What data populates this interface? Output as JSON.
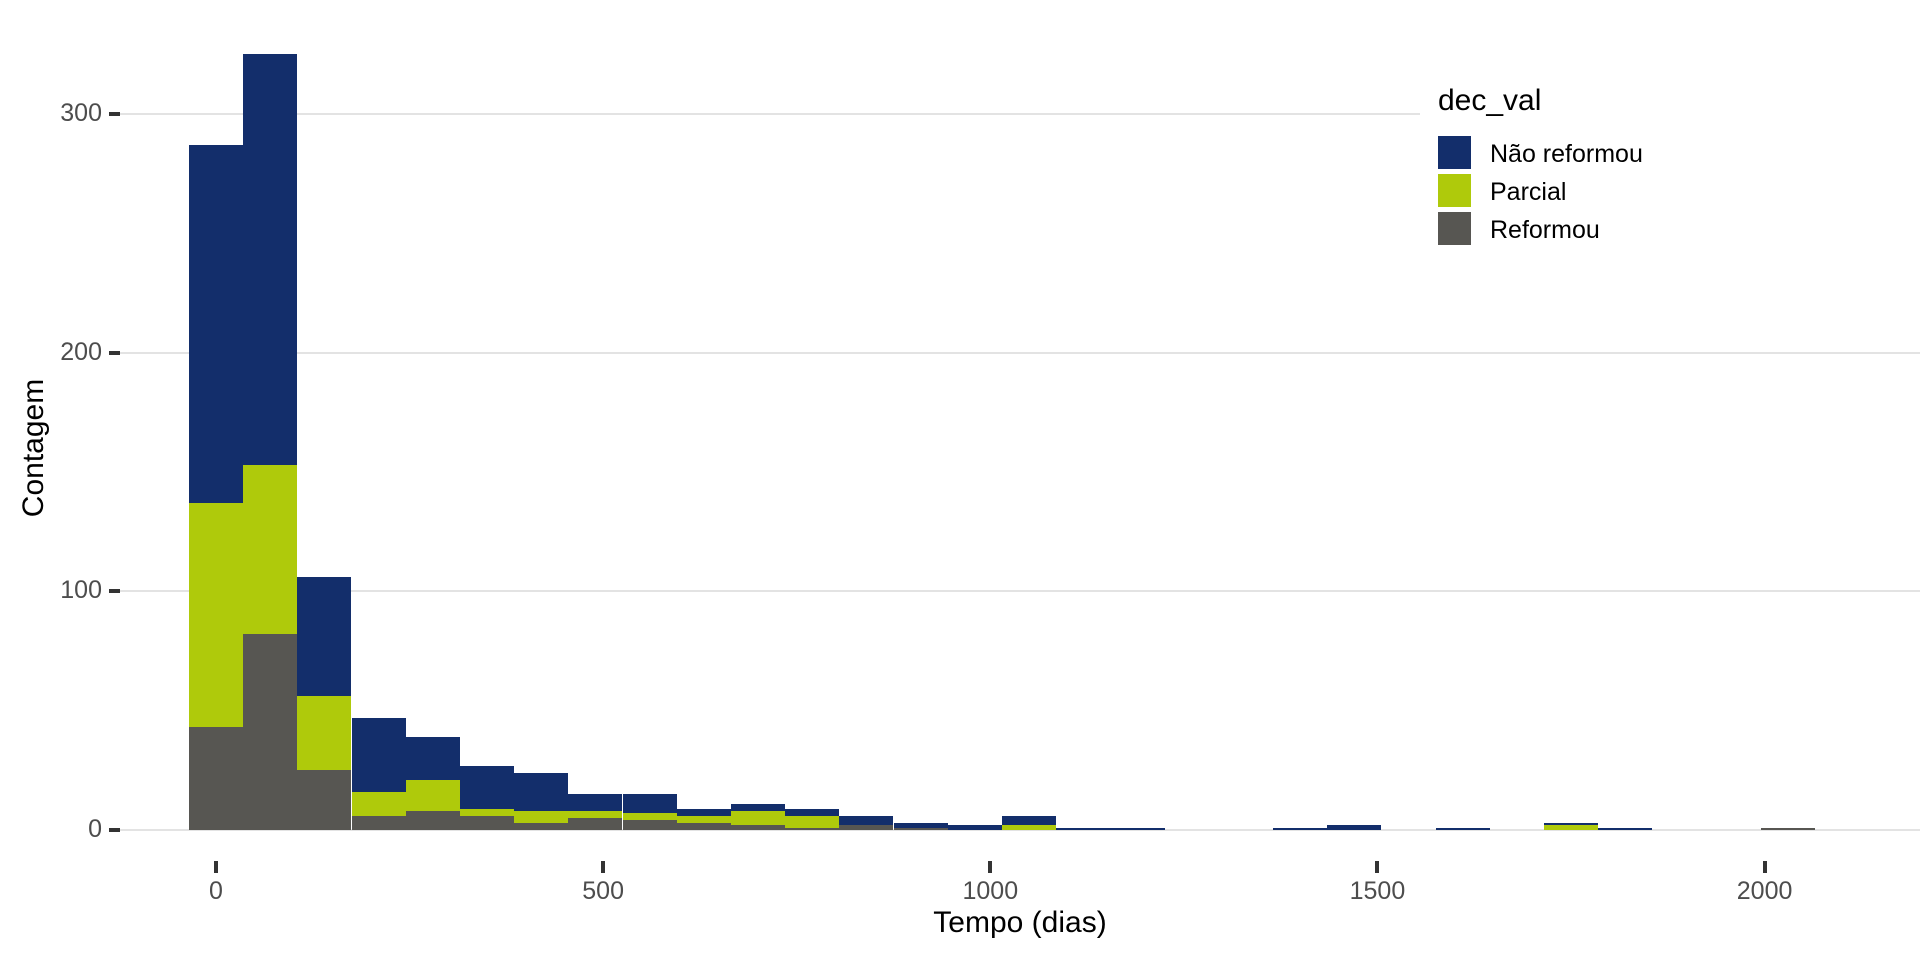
{
  "chart_data": {
    "type": "bar",
    "subtype": "stacked-histogram",
    "title": "",
    "xlabel": "Tempo (dias)",
    "ylabel": "Contagem",
    "legend_title": "dec_val",
    "legend_position": "top-right-inside",
    "grid": "horizontal-only",
    "background": "#ffffff",
    "gridline_color": "#e3e3e3",
    "tick_mark_color": "#333333",
    "tick_label_color": "#4d4d4d",
    "x_ticks": [
      0,
      500,
      1000,
      1500,
      2000
    ],
    "y_ticks": [
      0,
      100,
      200,
      300
    ],
    "xlim": [
      -35,
      2065
    ],
    "ylim": [
      0,
      335
    ],
    "binwidth": 70,
    "bin_centers": [
      0,
      70,
      140,
      210,
      280,
      350,
      420,
      490,
      560,
      630,
      700,
      770,
      840,
      910,
      980,
      1050,
      1120,
      1190,
      1260,
      1330,
      1400,
      1470,
      1540,
      1610,
      1680,
      1750,
      1820,
      1890,
      1960,
      2030
    ],
    "stack_order_bottom_to_top": [
      "Reformou",
      "Parcial",
      "Não reformou"
    ],
    "series": [
      {
        "name": "Não reformou",
        "color": "#132e6b",
        "values": [
          150,
          172,
          50,
          31,
          18,
          18,
          16,
          7,
          8,
          3,
          3,
          3,
          4,
          2,
          2,
          4,
          1,
          1,
          0,
          0,
          1,
          2,
          0,
          1,
          0,
          1,
          1,
          0,
          0,
          0
        ]
      },
      {
        "name": "Parcial",
        "color": "#afca0b",
        "values": [
          94,
          71,
          31,
          10,
          13,
          3,
          5,
          3,
          3,
          3,
          6,
          5,
          0,
          0,
          0,
          2,
          0,
          0,
          0,
          0,
          0,
          0,
          0,
          0,
          0,
          2,
          0,
          0,
          0,
          0
        ]
      },
      {
        "name": "Reformou",
        "color": "#575652",
        "values": [
          43,
          82,
          25,
          6,
          8,
          6,
          3,
          5,
          4,
          3,
          2,
          1,
          2,
          1,
          0,
          0,
          0,
          0,
          0,
          0,
          0,
          0,
          0,
          0,
          0,
          0,
          0,
          0,
          0,
          1
        ]
      }
    ]
  }
}
